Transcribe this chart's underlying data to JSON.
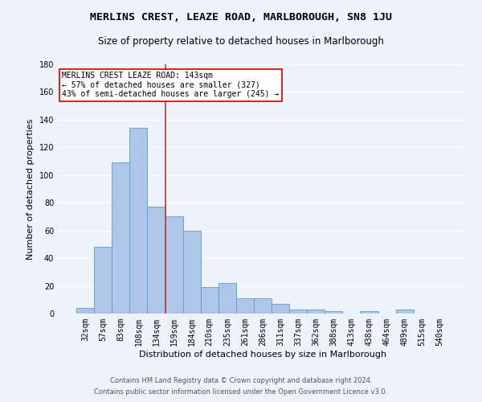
{
  "title": "MERLINS CREST, LEAZE ROAD, MARLBOROUGH, SN8 1JU",
  "subtitle": "Size of property relative to detached houses in Marlborough",
  "xlabel": "Distribution of detached houses by size in Marlborough",
  "ylabel": "Number of detached properties",
  "categories": [
    "32sqm",
    "57sqm",
    "83sqm",
    "108sqm",
    "134sqm",
    "159sqm",
    "184sqm",
    "210sqm",
    "235sqm",
    "261sqm",
    "286sqm",
    "311sqm",
    "337sqm",
    "362sqm",
    "388sqm",
    "413sqm",
    "438sqm",
    "464sqm",
    "489sqm",
    "515sqm",
    "540sqm"
  ],
  "values": [
    4,
    48,
    109,
    134,
    77,
    70,
    60,
    19,
    22,
    11,
    11,
    7,
    3,
    3,
    2,
    0,
    2,
    0,
    3,
    0,
    0
  ],
  "bar_color": "#aec6e8",
  "bar_edge_color": "#5b9bd5",
  "vline_x": 4.5,
  "vline_color": "#c0392b",
  "annotation_text": "MERLINS CREST LEAZE ROAD: 143sqm\n← 57% of detached houses are smaller (327)\n43% of semi-detached houses are larger (245) →",
  "annotation_box_color": "#ffffff",
  "annotation_box_edge": "#cc0000",
  "ylim": [
    0,
    180
  ],
  "yticks": [
    0,
    20,
    40,
    60,
    80,
    100,
    120,
    140,
    160,
    180
  ],
  "footer1": "Contains HM Land Registry data © Crown copyright and database right 2024.",
  "footer2": "Contains public sector information licensed under the Open Government Licence v3.0.",
  "bg_color": "#eef2fa",
  "grid_color": "#ffffff",
  "title_fontsize": 9.5,
  "subtitle_fontsize": 8.5,
  "xlabel_fontsize": 8,
  "ylabel_fontsize": 8,
  "tick_fontsize": 7,
  "footer_fontsize": 6,
  "ann_fontsize": 7
}
